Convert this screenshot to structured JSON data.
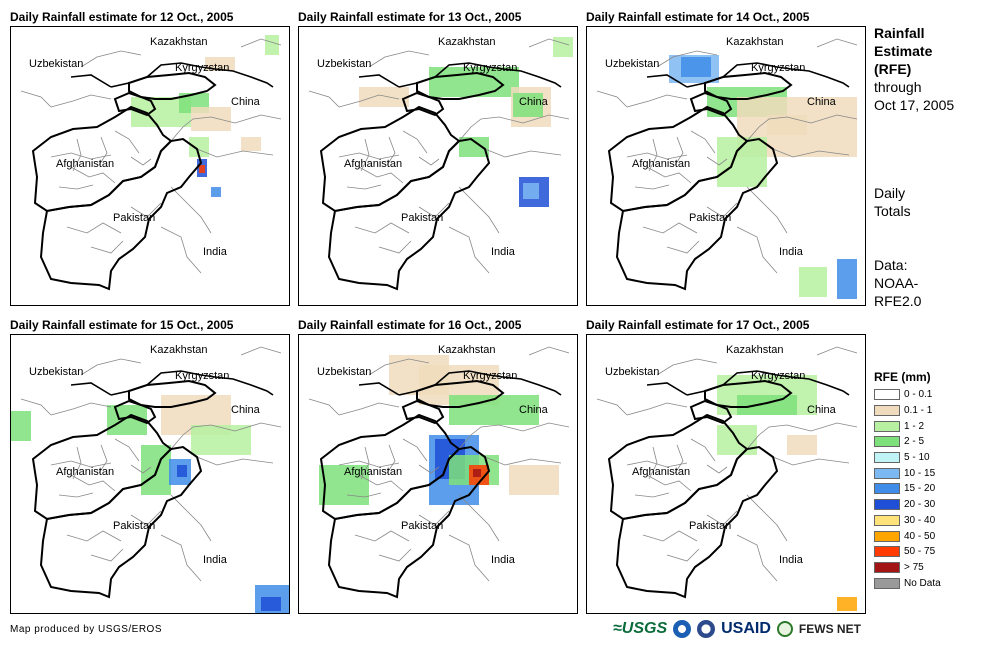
{
  "panels": [
    {
      "title": "Daily Rainfall estimate for 12 Oct., 2005"
    },
    {
      "title": "Daily Rainfall estimate for 13 Oct., 2005"
    },
    {
      "title": "Daily Rainfall estimate for 14 Oct., 2005"
    },
    {
      "title": "Daily Rainfall estimate for 15 Oct., 2005"
    },
    {
      "title": "Daily Rainfall estimate for 16 Oct., 2005"
    },
    {
      "title": "Daily Rainfall estimate for 17 Oct., 2005"
    }
  ],
  "map_labels": {
    "kazakhstan": "Kazakhstan",
    "uzbekistan": "Uzbekistan",
    "kyrgyzstan": "Kyrgyzstan",
    "china": "China",
    "afghanistan": "Afghanistan",
    "pakistan": "Pakistan",
    "india": "India"
  },
  "side": {
    "title_lines": [
      "Rainfall",
      "Estimate",
      "(RFE)"
    ],
    "through": "through",
    "date": "Oct 17, 2005",
    "daily": "Daily",
    "totals": "Totals",
    "data_label": "Data:",
    "data_source_1": "NOAA-",
    "data_source_2": "RFE2.0"
  },
  "legend": {
    "title": "RFE (mm)",
    "items": [
      {
        "label": "0 - 0.1",
        "color": "#ffffff"
      },
      {
        "label": "0.1 - 1",
        "color": "#f0dcbc"
      },
      {
        "label": "1 - 2",
        "color": "#b6f0a0"
      },
      {
        "label": "2 - 5",
        "color": "#7ee07a"
      },
      {
        "label": "5 - 10",
        "color": "#bff3f6"
      },
      {
        "label": "10 - 15",
        "color": "#7cb9f2"
      },
      {
        "label": "15 - 20",
        "color": "#3f8de8"
      },
      {
        "label": "20 - 30",
        "color": "#1f4fd6"
      },
      {
        "label": "30 - 40",
        "color": "#ffe37a"
      },
      {
        "label": "40 - 50",
        "color": "#ffa500"
      },
      {
        "label": "50 - 75",
        "color": "#ff3b00"
      },
      {
        "label": "> 75",
        "color": "#a31515"
      },
      {
        "label": "No Data",
        "color": "#999999"
      }
    ]
  },
  "footer": {
    "credit": "Map produced by USGS/EROS"
  },
  "logos": {
    "usgs": "≈USGS",
    "usaid": "USAID",
    "fews": "FEWS NET"
  }
}
